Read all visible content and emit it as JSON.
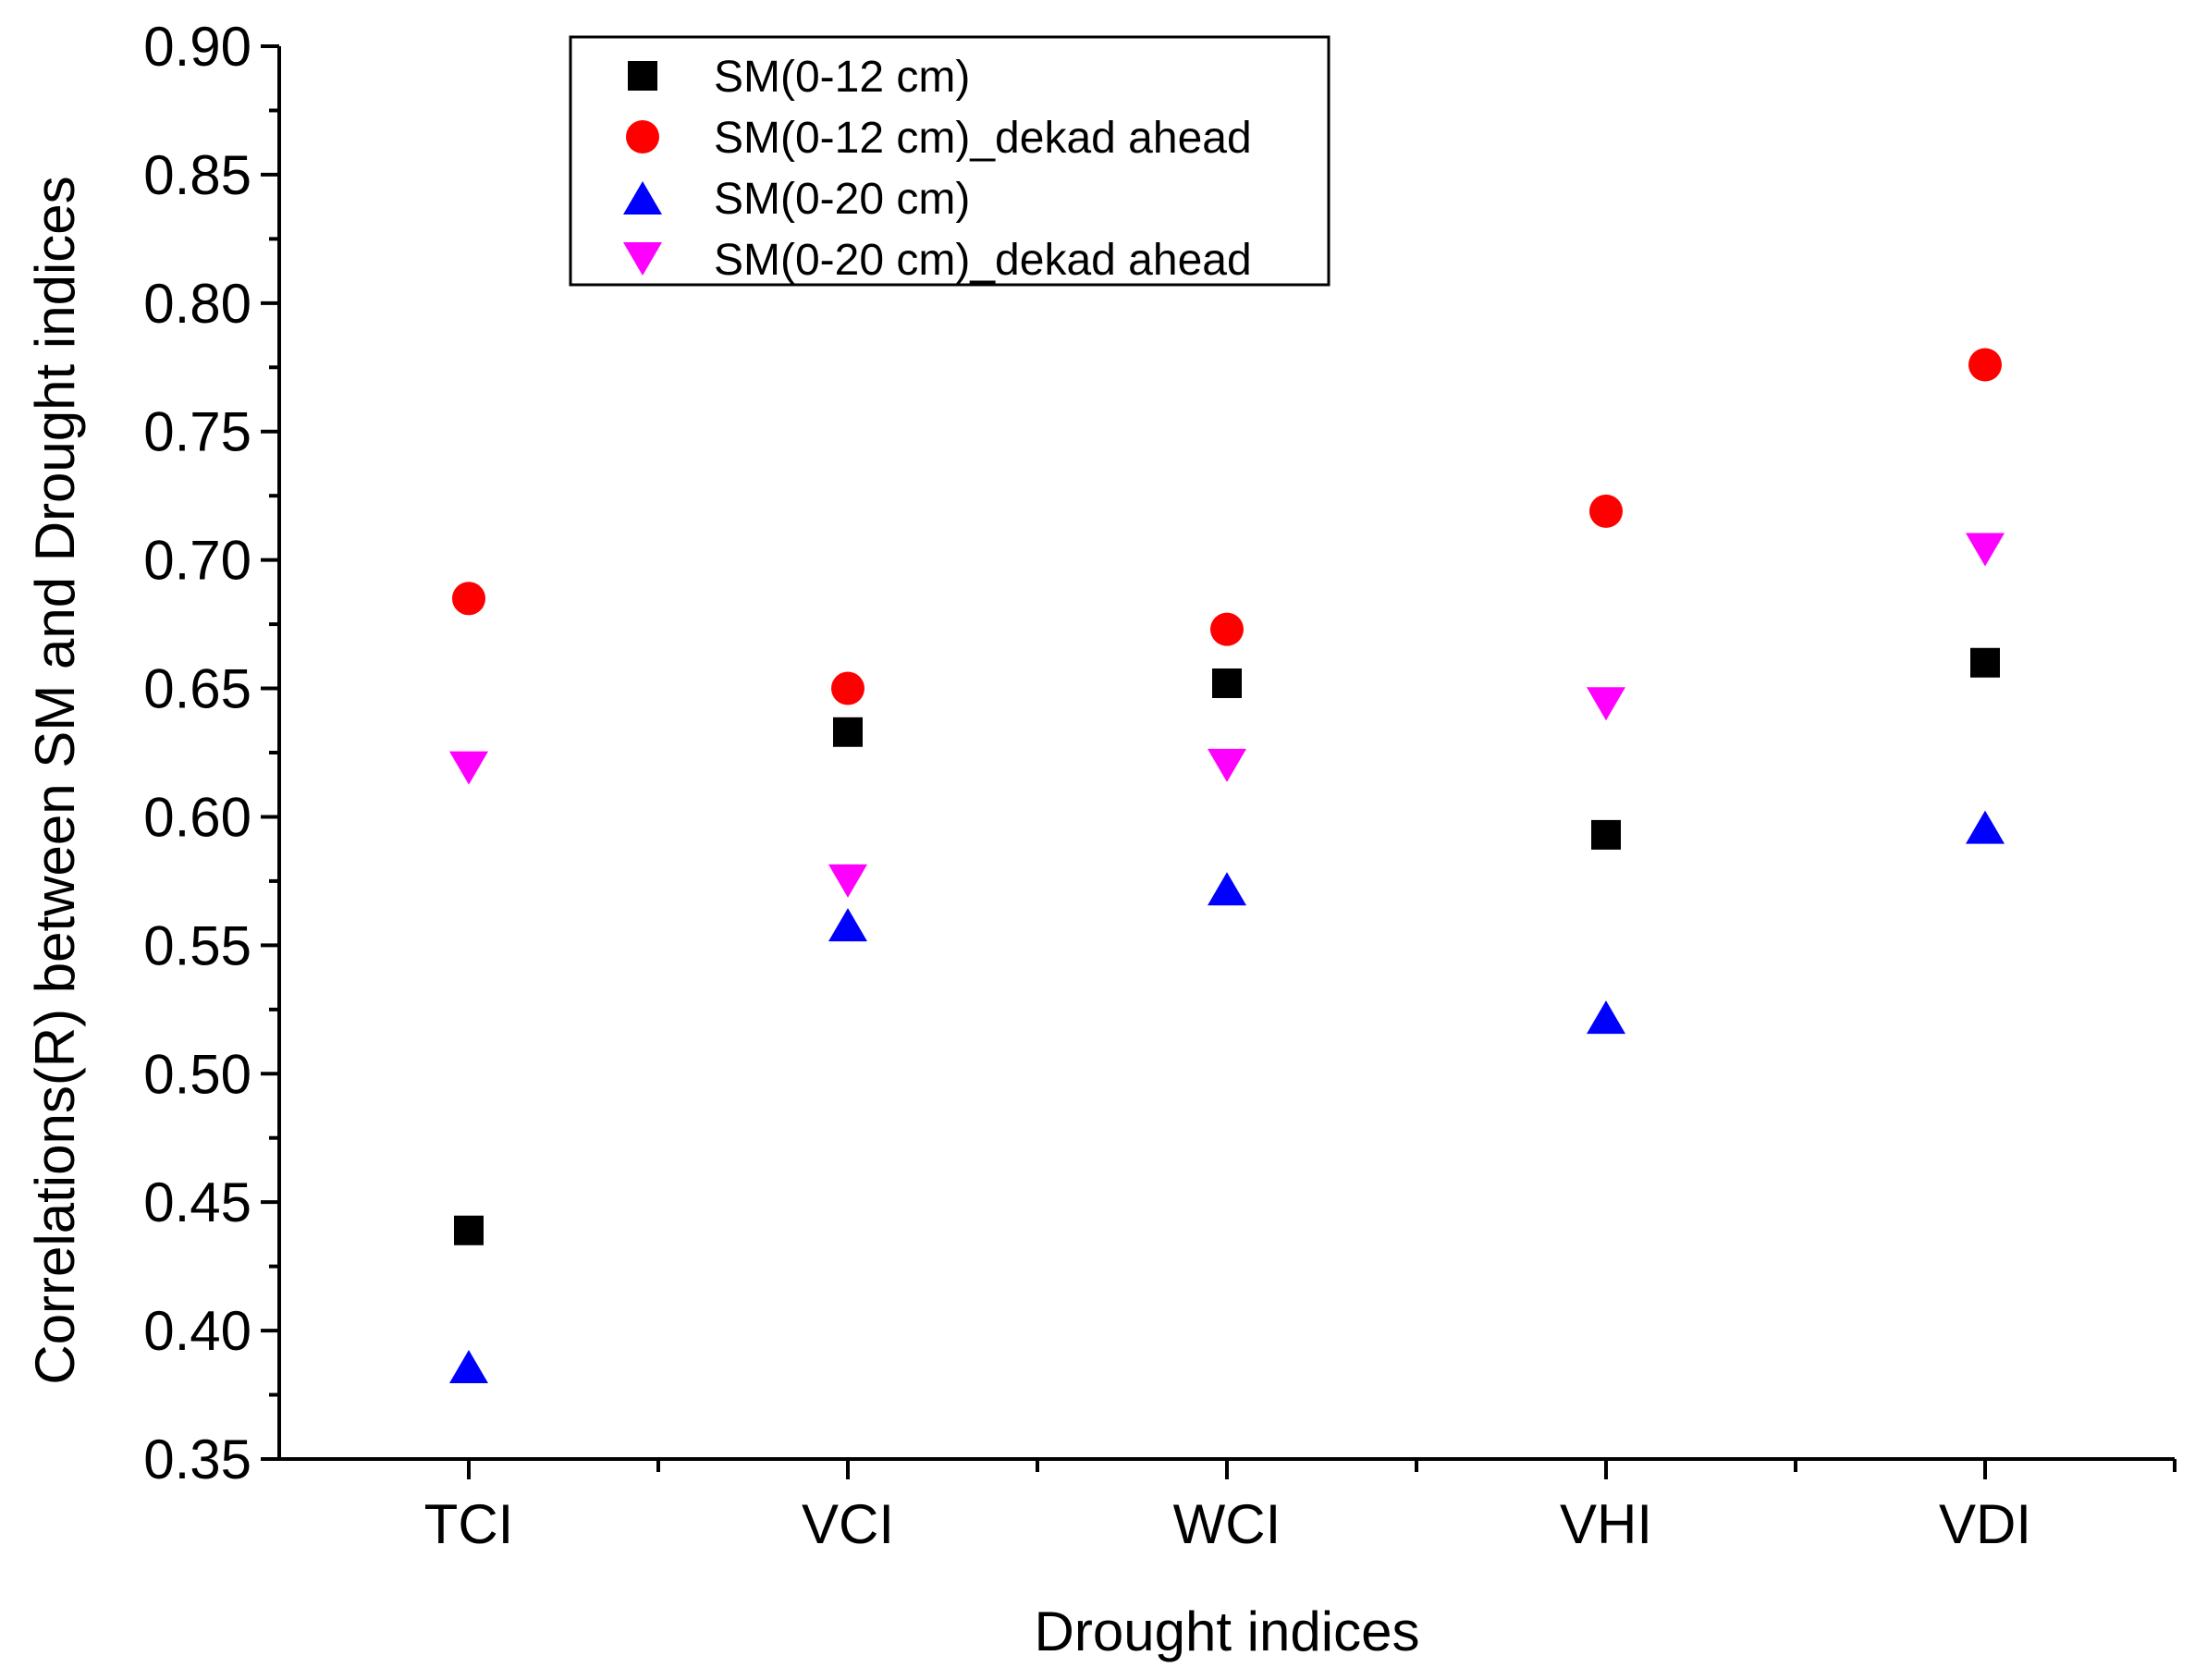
{
  "chart_data": {
    "type": "scatter",
    "title": "",
    "xlabel": "Drought indices",
    "ylabel": "Correlations(R) between SM and Drought indices",
    "categories": [
      "TCI",
      "VCI",
      "WCI",
      "VHI",
      "VDI"
    ],
    "ylim": [
      0.35,
      0.9
    ],
    "yticks": [
      "0.35",
      "0.40",
      "0.45",
      "0.50",
      "0.55",
      "0.60",
      "0.65",
      "0.70",
      "0.75",
      "0.80",
      "0.85",
      "0.90"
    ],
    "grid": false,
    "legend_position": "top-left",
    "series": [
      {
        "name": "SM(0-12 cm)",
        "marker": "square",
        "color": "#000000",
        "values": [
          0.439,
          0.633,
          0.652,
          0.593,
          0.66
        ]
      },
      {
        "name": "SM(0-12 cm)_dekad ahead",
        "marker": "circle",
        "color": "#ff0000",
        "values": [
          0.685,
          0.65,
          0.673,
          0.719,
          0.776
        ]
      },
      {
        "name": "SM(0-20 cm)",
        "marker": "triangle-up",
        "color": "#0000ff",
        "values": [
          0.386,
          0.558,
          0.572,
          0.522,
          0.596
        ]
      },
      {
        "name": "SM(0-20 cm)_dekad ahead",
        "marker": "triangle-down",
        "color": "#ff00ff",
        "values": [
          0.619,
          0.575,
          0.62,
          0.644,
          0.704
        ]
      }
    ]
  }
}
